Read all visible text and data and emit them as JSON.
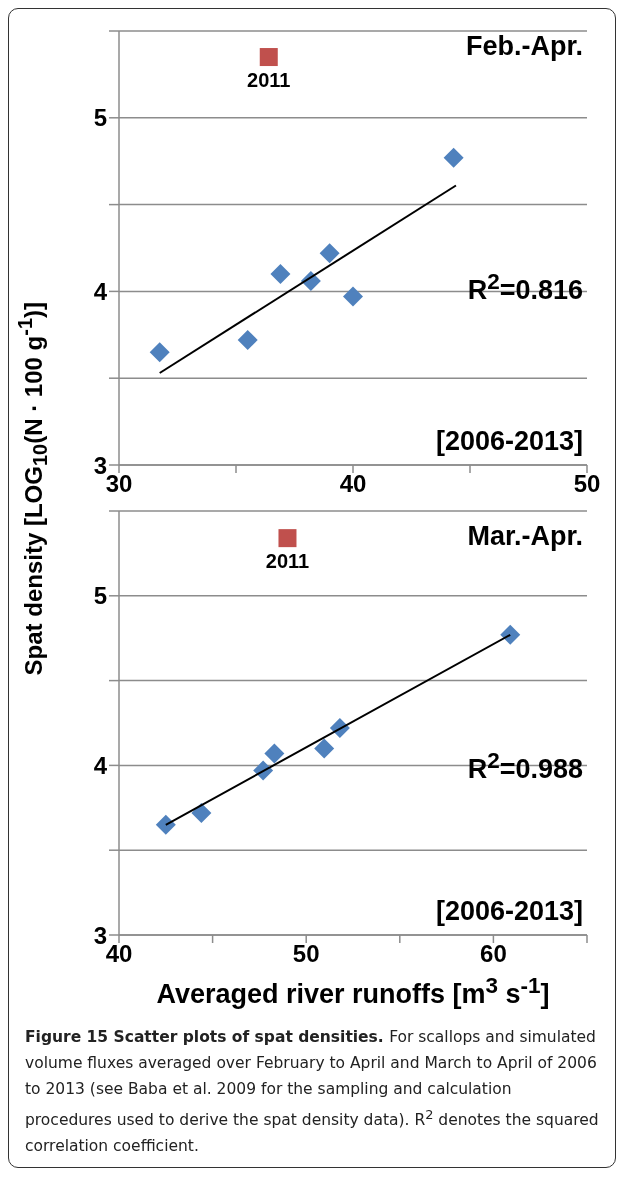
{
  "chart_data": [
    {
      "type": "scatter",
      "ylabel": "Spat density [LOG$_{10}$(N · 100 g$^{-1}$)]",
      "xlim": [
        30,
        50
      ],
      "xticks": [
        30,
        {
          "value": 35,
          "label": null
        },
        40,
        {
          "value": 45,
          "label": null
        },
        50
      ],
      "ylim": [
        3,
        5.5
      ],
      "yticks": [
        3,
        {
          "value": 3.5,
          "label": null
        },
        4,
        {
          "value": 4.5,
          "label": null
        },
        5,
        {
          "value": 5.5,
          "label": null
        }
      ],
      "grid": "y",
      "series": [
        {
          "marker": "diamond",
          "color": "#4f81bd",
          "x": [
            31.74,
            35.5,
            36.9,
            38.2,
            39.0,
            40.0,
            44.3
          ],
          "values": [
            3.65,
            3.72,
            4.1,
            4.06,
            4.22,
            3.97,
            4.77
          ]
        },
        {
          "marker": "square",
          "color": "#c0504d",
          "x": [
            36.4
          ],
          "values": [
            5.35
          ]
        },
        {
          "type": "line",
          "marker": "none",
          "line_style": "solid",
          "color": "#000000",
          "x": [
            31.74,
            44.4
          ],
          "values": [
            3.53,
            4.61
          ]
        }
      ],
      "annotations": [
        "Feb.-Apr.",
        "R$^{2}$=0.816",
        "[2006-2013]",
        {
          "text": "2011",
          "x": 36.4,
          "y": 5.35
        }
      ]
    },
    {
      "type": "scatter",
      "xlabel": "Averaged river runoffs [m$^{3}$ s$^{-1}$]",
      "xlim": [
        40,
        65
      ],
      "xticks": [
        40,
        {
          "value": 45,
          "label": null
        },
        50,
        {
          "value": 55,
          "label": null
        },
        60,
        {
          "value": 65,
          "label": null
        }
      ],
      "ylim": [
        3,
        5.5
      ],
      "yticks": [
        3,
        {
          "value": 3.5,
          "label": null
        },
        4,
        {
          "value": 4.5,
          "label": null
        },
        5,
        {
          "value": 5.5,
          "label": null
        }
      ],
      "grid": "y",
      "series": [
        {
          "marker": "diamond",
          "color": "#4f81bd",
          "x": [
            42.5,
            44.4,
            47.7,
            48.3,
            50.96,
            51.8,
            60.9
          ],
          "values": [
            3.65,
            3.72,
            3.97,
            4.07,
            4.1,
            4.22,
            4.77
          ]
        },
        {
          "marker": "square",
          "color": "#c0504d",
          "x": [
            49.0
          ],
          "values": [
            5.34
          ]
        },
        {
          "type": "line",
          "marker": "none",
          "line_style": "solid",
          "color": "#000000",
          "x": [
            42.5,
            60.9
          ],
          "values": [
            3.65,
            4.77
          ]
        }
      ],
      "annotations": [
        "Mar.-Apr.",
        "R$^{2}$=0.988",
        "[2006-2013]",
        {
          "text": "2011",
          "x": 49.0,
          "y": 5.34
        },
        "Figure 15 Scatter plots of spat densities.",
        "For scallops and simulated volume fluxes averaged over February to April and March to April of 2006 to 2013 (see Baba et al. 2009 for the sampling and calculation procedures used to derive the spat density data). R$^{2}$ denotes the squared correlation coefficient."
      ]
    }
  ]
}
